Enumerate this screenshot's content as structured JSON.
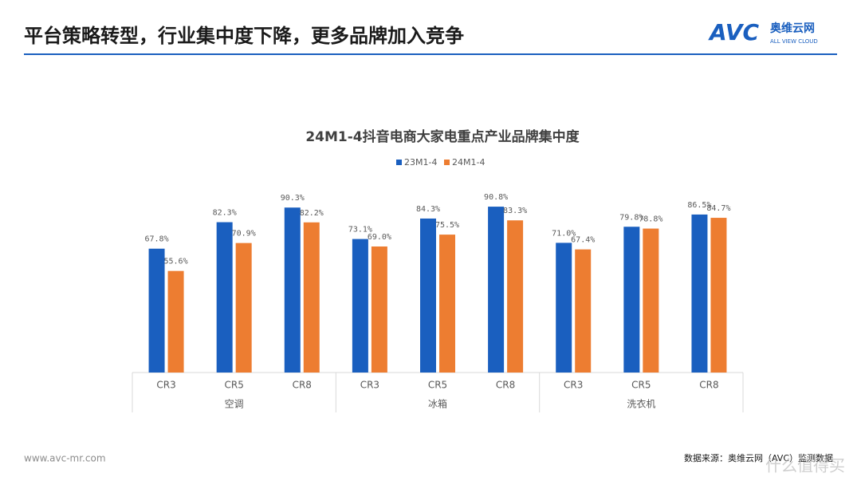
{
  "header": {
    "title": "平台策略转型，行业集中度下降，更多品牌加入竞争",
    "logo": "AVC",
    "logo_cn": "奥维云网",
    "logo_en": "ALL VIEW CLOUD"
  },
  "chart_data": {
    "type": "bar",
    "title": "24M1-4抖音电商大家电重点产业品牌集中度",
    "groups": [
      "空调",
      "冰箱",
      "洗衣机"
    ],
    "categories": [
      "CR3",
      "CR5",
      "CR8",
      "CR3",
      "CR5",
      "CR8",
      "CR3",
      "CR5",
      "CR8"
    ],
    "legend": "top",
    "series": [
      {
        "name": "23M1-4",
        "color": "#1a5fbf",
        "values": [
          67.8,
          82.3,
          90.3,
          73.1,
          84.3,
          90.8,
          71.0,
          79.8,
          86.5
        ],
        "value_labels": [
          "67.8%",
          "82.3%",
          "90.3%",
          "73.1%",
          "84.3%",
          "90.8%",
          "71.0%",
          "79.8%",
          "86.5%"
        ]
      },
      {
        "name": "24M1-4",
        "color": "#ed7d31",
        "values": [
          55.6,
          70.9,
          82.2,
          69.0,
          75.5,
          83.3,
          67.4,
          78.8,
          84.7
        ],
        "value_labels": [
          "55.6%",
          "70.9%",
          "82.2%",
          "69.0%",
          "75.5%",
          "83.3%",
          "67.4%",
          "78.8%",
          "84.7%"
        ]
      }
    ]
  },
  "footer": {
    "website": "www.avc-mr.com",
    "source": "数据来源：奥维云网（AVC）监测数据",
    "watermark": "什么值得买"
  }
}
